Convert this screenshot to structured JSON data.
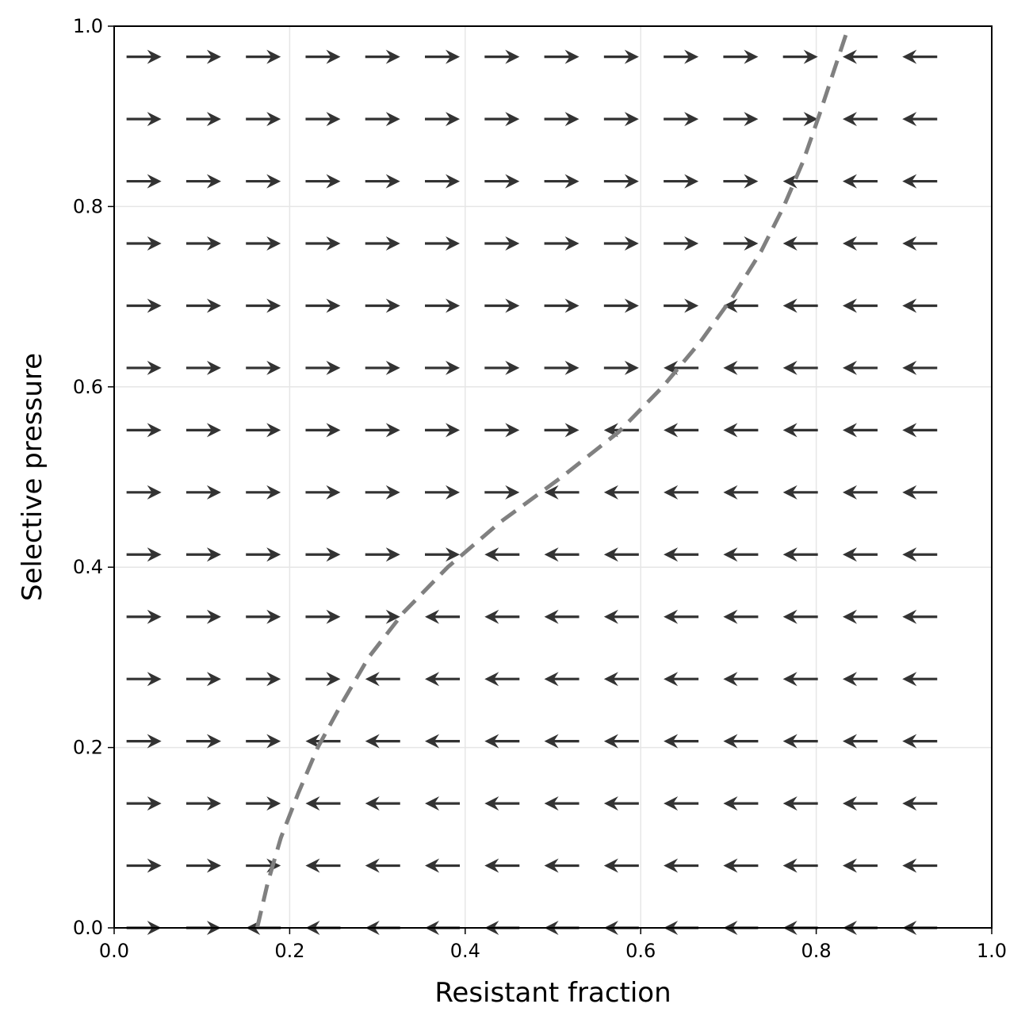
{
  "chart_data": {
    "type": "quiver",
    "title": "",
    "xlabel": "Resistant fraction",
    "ylabel": "Selective pressure",
    "xlim": [
      0.0,
      1.0
    ],
    "ylim": [
      0.0,
      1.0
    ],
    "xticks": [
      "0.0",
      "0.2",
      "0.4",
      "0.6",
      "0.8",
      "1.0"
    ],
    "yticks": [
      "0.0",
      "0.2",
      "0.4",
      "0.6",
      "0.8",
      "1.0"
    ],
    "grid": true,
    "arrow_color": "#333333",
    "grid_x": [
      0.034,
      0.102,
      0.17,
      0.238,
      0.306,
      0.374,
      0.442,
      0.51,
      0.578,
      0.646,
      0.714,
      0.782,
      0.85,
      0.918
    ],
    "grid_y": [
      0.0,
      0.069,
      0.138,
      0.207,
      0.276,
      0.345,
      0.414,
      0.483,
      0.552,
      0.621,
      0.69,
      0.759,
      0.828,
      0.897,
      0.966
    ],
    "direction_rule": "arrows point right (+1) when resistant fraction is below the nullcline at that pressure, left (-1) when above",
    "nullcline": {
      "style": "dashed",
      "color": "#808080",
      "points": [
        [
          0.163,
          0.0
        ],
        [
          0.175,
          0.05
        ],
        [
          0.19,
          0.1
        ],
        [
          0.21,
          0.15
        ],
        [
          0.232,
          0.2
        ],
        [
          0.26,
          0.25
        ],
        [
          0.29,
          0.3
        ],
        [
          0.33,
          0.35
        ],
        [
          0.38,
          0.4
        ],
        [
          0.44,
          0.45
        ],
        [
          0.51,
          0.5
        ],
        [
          0.575,
          0.55
        ],
        [
          0.625,
          0.6
        ],
        [
          0.668,
          0.65
        ],
        [
          0.705,
          0.7
        ],
        [
          0.737,
          0.75
        ],
        [
          0.763,
          0.8
        ],
        [
          0.785,
          0.85
        ],
        [
          0.803,
          0.9
        ],
        [
          0.82,
          0.95
        ],
        [
          0.837,
          1.0
        ]
      ]
    }
  }
}
